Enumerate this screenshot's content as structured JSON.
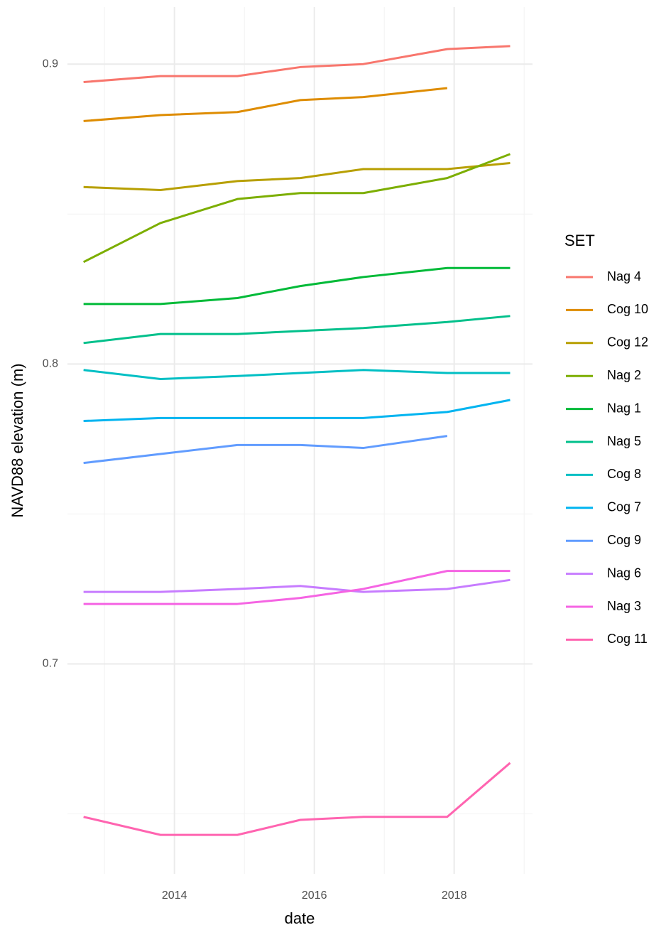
{
  "chart_data": {
    "type": "line",
    "x_label": "date",
    "y_label": "NAVD88 elevation (m)",
    "legend_title": "SET",
    "legend_position": "right",
    "x": [
      2012.7,
      2013.8,
      2014.9,
      2015.8,
      2016.7,
      2017.9,
      2018.8
    ],
    "xlim": [
      2012.47,
      2019.12
    ],
    "xticks": [
      2014,
      2016,
      2018
    ],
    "ylim": [
      0.63,
      0.919
    ],
    "yticks": [
      0.7,
      0.8,
      0.9
    ],
    "grid": true,
    "series": [
      {
        "name": "Nag 4",
        "color": "#F8766D",
        "values": [
          0.894,
          0.896,
          0.896,
          0.899,
          0.9,
          0.905,
          0.906
        ]
      },
      {
        "name": "Cog 10",
        "color": "#DE8C00",
        "values": [
          0.881,
          0.883,
          0.884,
          0.888,
          0.889,
          0.892,
          null
        ]
      },
      {
        "name": "Cog 12",
        "color": "#B79F00",
        "values": [
          0.859,
          0.858,
          0.861,
          0.862,
          0.865,
          0.865,
          0.867
        ]
      },
      {
        "name": "Nag 2",
        "color": "#7CAE00",
        "values": [
          0.834,
          0.847,
          0.855,
          0.857,
          0.857,
          0.862,
          0.87
        ]
      },
      {
        "name": "Nag 1",
        "color": "#00BA38",
        "values": [
          0.82,
          0.82,
          0.822,
          0.826,
          0.829,
          0.832,
          0.832
        ]
      },
      {
        "name": "Nag 5",
        "color": "#00C08B",
        "values": [
          0.807,
          0.81,
          0.81,
          0.811,
          0.812,
          0.814,
          0.816
        ]
      },
      {
        "name": "Cog 8",
        "color": "#00BFC4",
        "values": [
          0.798,
          0.795,
          0.796,
          0.797,
          0.798,
          0.797,
          0.797
        ]
      },
      {
        "name": "Cog 7",
        "color": "#00B4F0",
        "values": [
          0.781,
          0.782,
          0.782,
          0.782,
          0.782,
          0.784,
          0.788
        ]
      },
      {
        "name": "Cog 9",
        "color": "#619CFF",
        "values": [
          0.767,
          0.77,
          0.773,
          0.773,
          0.772,
          0.776,
          null
        ]
      },
      {
        "name": "Nag 6",
        "color": "#C77CFF",
        "values": [
          0.724,
          0.724,
          0.725,
          0.726,
          0.724,
          0.725,
          0.728
        ]
      },
      {
        "name": "Nag 3",
        "color": "#F564E3",
        "values": [
          0.72,
          0.72,
          0.72,
          0.722,
          0.725,
          0.731,
          0.731
        ]
      },
      {
        "name": "Cog 11",
        "color": "#FF64B0",
        "values": [
          0.649,
          0.643,
          0.643,
          0.648,
          0.649,
          0.649,
          0.667
        ]
      }
    ]
  }
}
